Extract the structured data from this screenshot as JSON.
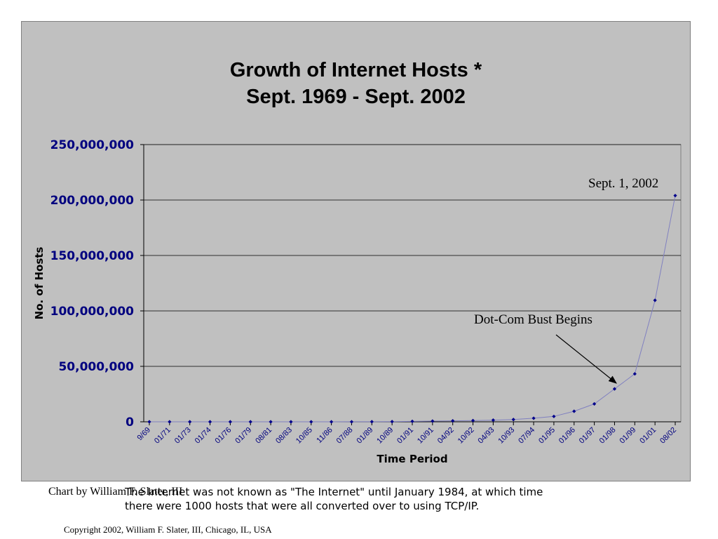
{
  "chart_data": {
    "type": "line",
    "title": [
      "Growth of Internet Hosts *",
      "Sept. 1969 - Sept. 2002"
    ],
    "xlabel": "Time Period",
    "ylabel": "No. of Hosts",
    "ylim": [
      0,
      250000000
    ],
    "yticks": [
      "0",
      "50,000,000",
      "100,000,000",
      "150,000,000",
      "200,000,000",
      "250,000,000"
    ],
    "grid": true,
    "categories": [
      "9/69",
      "01/71",
      "01/73",
      "01/74",
      "01/76",
      "01/79",
      "08/81",
      "08/83",
      "10/85",
      "11/86",
      "07/88",
      "01/89",
      "10/89",
      "01/91",
      "10/91",
      "04/92",
      "10/92",
      "04/93",
      "10/93",
      "07/94",
      "01/95",
      "01/96",
      "01/97",
      "01/98",
      "01/99",
      "01/01",
      "08/02"
    ],
    "values": [
      4,
      13,
      35,
      62,
      235,
      188,
      213,
      562,
      1961,
      5089,
      33000,
      80000,
      159000,
      376000,
      617000,
      890000,
      1136000,
      1486000,
      2056000,
      3212000,
      4852000,
      9472000,
      16146000,
      29670000,
      43230000,
      109574000,
      204000000
    ],
    "series_color": "#00008b",
    "annotations": [
      "Sept. 1, 2002",
      "Dot-Com Bust Begins"
    ]
  },
  "chart_credit": "Chart by William F. Slater, III",
  "footnote": [
    "The Internet was not known as \"The Internet\" until January 1984, at which time",
    "there were 1000 hosts that were all converted over to using TCP/IP."
  ],
  "copyright": "Copyright 2002, William F. Slater, III, Chicago, IL, USA"
}
